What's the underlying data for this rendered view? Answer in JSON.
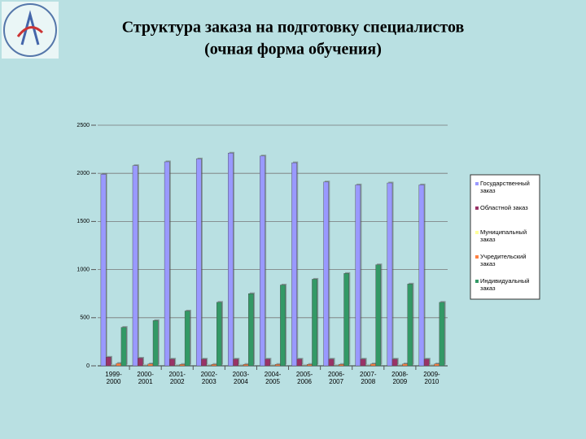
{
  "chart_data": {
    "type": "bar",
    "title": "Структура заказа на подготовку специалистов",
    "subtitle": "(очная форма обучения)",
    "categories": [
      "1999-2000",
      "2000-2001",
      "2001-2002",
      "2002-2003",
      "2003-2004",
      "2004-2005",
      "2005-2006",
      "2006-2007",
      "2007-2008",
      "2008-2009",
      "2009-2010"
    ],
    "series": [
      {
        "name": "Государственный заказ",
        "color": "#9999ff",
        "values": [
          1990,
          2080,
          2120,
          2150,
          2210,
          2180,
          2110,
          1910,
          1880,
          1900,
          1880
        ]
      },
      {
        "name": "Областной заказ",
        "color": "#993366",
        "values": [
          90,
          80,
          70,
          70,
          70,
          70,
          70,
          70,
          70,
          70,
          70
        ]
      },
      {
        "name": "Муниципальный заказ",
        "color": "#ffff99",
        "values": [
          5,
          5,
          5,
          5,
          5,
          5,
          5,
          5,
          5,
          5,
          5
        ]
      },
      {
        "name": "Учредительский заказ",
        "color": "#ff8040",
        "values": [
          25,
          20,
          15,
          15,
          15,
          15,
          15,
          15,
          20,
          20,
          20
        ]
      },
      {
        "name": "Индивидуальный заказ",
        "color": "#339966",
        "values": [
          400,
          470,
          570,
          660,
          750,
          840,
          900,
          960,
          1050,
          850,
          660
        ]
      }
    ],
    "ylim": [
      0,
      2500
    ],
    "yticks": [
      0,
      500,
      1000,
      1500,
      2000,
      2500
    ],
    "grid": true,
    "legend": "right"
  }
}
